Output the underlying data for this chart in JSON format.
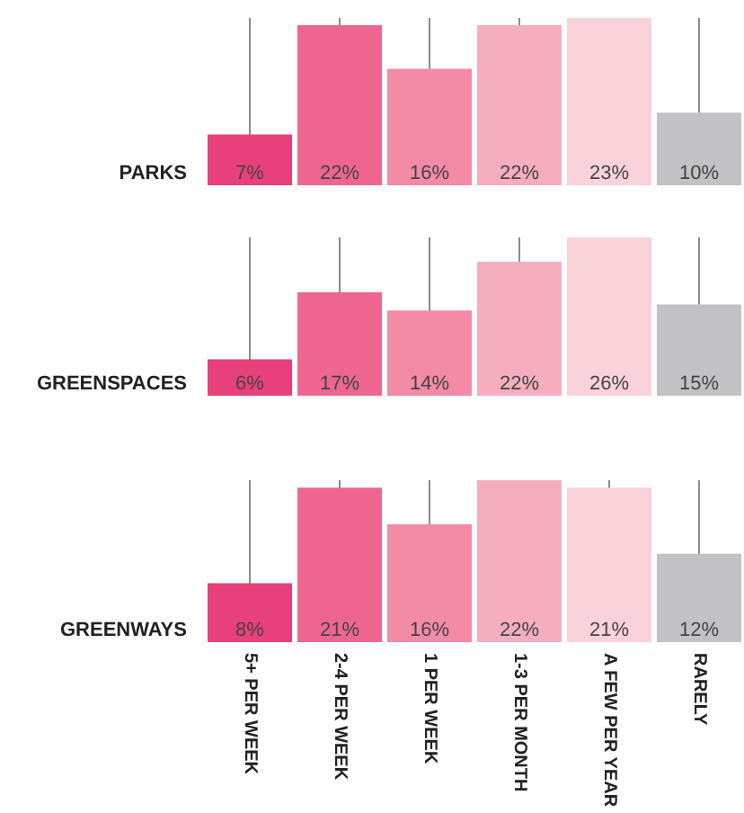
{
  "chart_data": [
    {
      "type": "bar",
      "ylabel": "PARKS",
      "categories": [
        null,
        null,
        null,
        null,
        null,
        null
      ],
      "values": [
        7,
        22,
        16,
        22,
        23,
        10
      ],
      "value_labels": [
        "7%",
        "22%",
        "16%",
        "22%",
        "23%",
        "10%"
      ],
      "colors": [
        "#e8407a",
        "#ee6690",
        "#f38aa6",
        "#f6aebf",
        "#f9d2da",
        "#c2c2c4"
      ],
      "grid": "x",
      "tick_labels": false
    },
    {
      "type": "bar",
      "ylabel": "GREENSPACES",
      "categories": [
        null,
        null,
        null,
        null,
        null,
        null
      ],
      "values": [
        6,
        17,
        14,
        22,
        26,
        15
      ],
      "value_labels": [
        "6%",
        "17%",
        "14%",
        "22%",
        "26%",
        "15%"
      ],
      "colors": [
        "#e8407a",
        "#ee6690",
        "#f38aa6",
        "#f6aebf",
        "#f9d2da",
        "#c2c2c4"
      ],
      "grid": "x",
      "tick_labels": false
    },
    {
      "type": "bar",
      "ylabel": "GREENWAYS",
      "categories": [
        "5+ PER WEEK",
        "2-4 PER WEEK",
        "1 PER WEEK",
        "1-3 PER MONTH",
        "A FEW PER YEAR",
        "RARELY"
      ],
      "values": [
        8,
        21,
        16,
        22,
        21,
        12
      ],
      "value_labels": [
        "8%",
        "21%",
        "16%",
        "22%",
        "21%",
        "12%"
      ],
      "colors": [
        "#e8407a",
        "#ee6690",
        "#f38aa6",
        "#f6aebf",
        "#f9d2da",
        "#c2c2c4"
      ],
      "grid": "x",
      "tick_labels": "x"
    }
  ]
}
